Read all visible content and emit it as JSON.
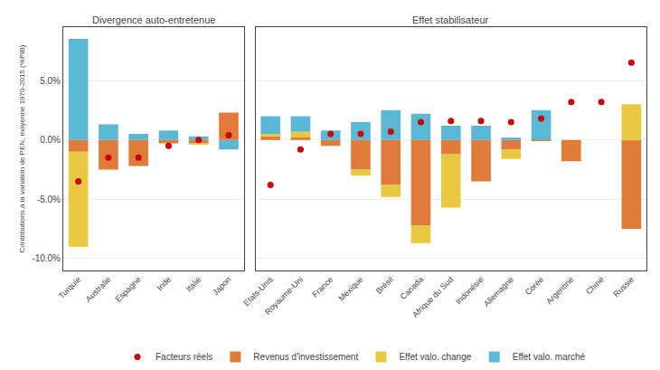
{
  "chart_data": [
    {
      "type": "bar",
      "title": "Divergence auto-entretenue",
      "ylabel": "Contributions à la variation de PEN, moyenne 1970-2015 (%PIB)",
      "stacked": true,
      "grid": true,
      "legend": "bottom",
      "categories": [
        "Turquie",
        "Australie",
        "Espagne",
        "Inde",
        "Italie",
        "Japon"
      ],
      "ylim": [
        -11.0,
        9.5
      ],
      "yticks": [
        {
          "value": -10.0,
          "label": "-10.0%"
        },
        {
          "value": -5.0,
          "label": "-5.0%"
        },
        {
          "value": 0.0,
          "label": "0.0%"
        },
        {
          "value": 5.0,
          "label": "5.0%"
        }
      ],
      "series": [
        {
          "name": "Facteurs réels",
          "type": "scatter",
          "marker": "circle",
          "color": "#CC0000",
          "values": [
            -3.5,
            -1.5,
            -1.5,
            -0.5,
            0.0,
            0.4
          ]
        },
        {
          "name": "Revenus d'investissement",
          "type": "bar",
          "color": "#E07B39",
          "values": [
            -1.0,
            -2.5,
            -2.2,
            -0.3,
            -0.3,
            2.3
          ]
        },
        {
          "name": "Effet valo. change",
          "type": "bar",
          "color": "#E8C840",
          "values": [
            -8.0,
            0.0,
            0.0,
            0.0,
            -0.1,
            0.0
          ]
        },
        {
          "name": "Effet valo. marché",
          "type": "bar",
          "color": "#5BB8D4",
          "values": [
            8.5,
            1.3,
            0.5,
            0.8,
            0.3,
            -0.8
          ]
        }
      ]
    },
    {
      "type": "bar",
      "title": "Effet stabilisateur",
      "stacked": true,
      "grid": true,
      "tick_labels": "x",
      "categories": [
        "Etats-Unis",
        "Royaume-Uni",
        "France",
        "Mexique",
        "Brésil",
        "Canada",
        "Afrique du Sud",
        "Indonésie",
        "Allemagne",
        "Corée",
        "Argentine",
        "Chine",
        "Russie"
      ],
      "ylim": [
        -11.0,
        9.5
      ],
      "yticks": [
        -10.0,
        -5.0,
        0.0,
        5.0
      ],
      "series": [
        {
          "name": "Facteurs réels",
          "type": "scatter",
          "marker": "circle",
          "color": "#CC0000",
          "values": [
            -3.8,
            -0.8,
            0.5,
            0.5,
            0.7,
            1.5,
            1.6,
            1.6,
            1.5,
            1.8,
            3.2,
            3.2,
            6.5
          ]
        },
        {
          "name": "Revenus d'investissement",
          "type": "bar",
          "color": "#E07B39",
          "values": [
            0.3,
            0.2,
            -0.5,
            -2.5,
            -3.8,
            -7.2,
            -1.2,
            -3.5,
            -0.8,
            -0.1,
            -1.8,
            0.0,
            -7.5
          ]
        },
        {
          "name": "Effet valo. change",
          "type": "bar",
          "color": "#E8C840",
          "values": [
            0.2,
            0.5,
            0.0,
            -0.5,
            -1.0,
            -1.5,
            -4.5,
            0.0,
            -0.8,
            0.0,
            0.0,
            0.0,
            3.0
          ]
        },
        {
          "name": "Effet valo. marché",
          "type": "bar",
          "color": "#5BB8D4",
          "values": [
            1.5,
            1.3,
            0.8,
            1.5,
            2.5,
            2.2,
            1.2,
            1.2,
            0.2,
            2.5,
            0.0,
            0.0,
            0.0
          ]
        }
      ]
    }
  ]
}
